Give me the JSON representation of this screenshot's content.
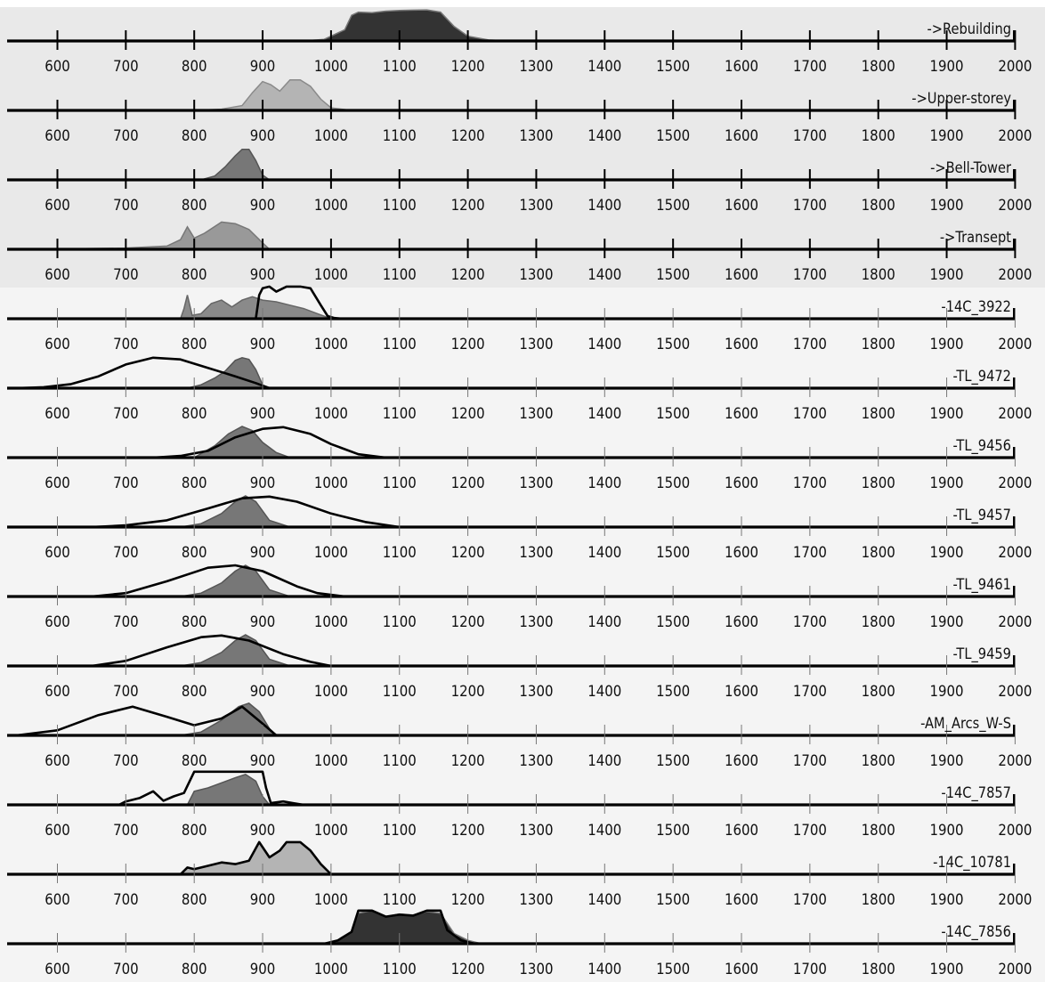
{
  "chart_data": {
    "type": "area",
    "x_ticks": [
      600,
      700,
      800,
      900,
      1000,
      1100,
      1200,
      1300,
      1400,
      1500,
      1600,
      1700,
      1800,
      1900,
      2000
    ],
    "xlim": [
      525,
      2000
    ],
    "rows": [
      {
        "label": "->Rebuilding",
        "band": "derived",
        "fill": "#333333",
        "edge": "#777777",
        "posterior": [
          [
            960,
            0
          ],
          [
            990,
            0.05
          ],
          [
            1020,
            0.35
          ],
          [
            1030,
            0.8
          ],
          [
            1040,
            0.9
          ],
          [
            1060,
            0.88
          ],
          [
            1080,
            0.93
          ],
          [
            1100,
            0.95
          ],
          [
            1120,
            0.96
          ],
          [
            1140,
            0.97
          ],
          [
            1160,
            0.9
          ],
          [
            1180,
            0.45
          ],
          [
            1200,
            0.15
          ],
          [
            1230,
            0.03
          ],
          [
            1260,
            0
          ]
        ],
        "likelihood": []
      },
      {
        "label": "->Upper-storey",
        "band": "derived",
        "fill": "#b4b4b4",
        "edge": "#8a8a8a",
        "posterior": [
          [
            800,
            0
          ],
          [
            840,
            0.04
          ],
          [
            870,
            0.15
          ],
          [
            885,
            0.55
          ],
          [
            900,
            0.9
          ],
          [
            912,
            0.8
          ],
          [
            925,
            0.6
          ],
          [
            940,
            0.95
          ],
          [
            955,
            0.95
          ],
          [
            970,
            0.75
          ],
          [
            985,
            0.35
          ],
          [
            1000,
            0.08
          ],
          [
            1030,
            0
          ]
        ],
        "likelihood": []
      },
      {
        "label": "->Bell-Tower",
        "band": "derived",
        "fill": "#777777",
        "edge": "#555555",
        "posterior": [
          [
            810,
            0
          ],
          [
            830,
            0.12
          ],
          [
            845,
            0.4
          ],
          [
            860,
            0.75
          ],
          [
            870,
            0.95
          ],
          [
            880,
            0.95
          ],
          [
            890,
            0.6
          ],
          [
            900,
            0.15
          ],
          [
            910,
            0
          ]
        ],
        "likelihood": []
      },
      {
        "label": "->Transept",
        "band": "derived",
        "fill": "#999999",
        "edge": "#777777",
        "posterior": [
          [
            550,
            0
          ],
          [
            640,
            0.02
          ],
          [
            700,
            0.04
          ],
          [
            760,
            0.1
          ],
          [
            780,
            0.3
          ],
          [
            790,
            0.7
          ],
          [
            800,
            0.35
          ],
          [
            815,
            0.5
          ],
          [
            840,
            0.85
          ],
          [
            860,
            0.8
          ],
          [
            880,
            0.62
          ],
          [
            900,
            0.2
          ],
          [
            910,
            0
          ]
        ],
        "likelihood": []
      },
      {
        "label": "-14C_3922",
        "band": "date",
        "fill": "#8a8a8a",
        "edge": "#666666",
        "posterior": [
          [
            780,
            0
          ],
          [
            785,
            0.3
          ],
          [
            790,
            0.7
          ],
          [
            797,
            0.1
          ],
          [
            810,
            0.15
          ],
          [
            825,
            0.45
          ],
          [
            840,
            0.55
          ],
          [
            855,
            0.35
          ],
          [
            870,
            0.55
          ],
          [
            885,
            0.65
          ],
          [
            900,
            0.55
          ],
          [
            920,
            0.5
          ],
          [
            940,
            0.4
          ],
          [
            960,
            0.3
          ],
          [
            980,
            0.15
          ],
          [
            1000,
            0
          ]
        ],
        "likelihood": [
          [
            890,
            0
          ],
          [
            895,
            0.7
          ],
          [
            900,
            0.9
          ],
          [
            910,
            0.95
          ],
          [
            920,
            0.8
          ],
          [
            935,
            0.95
          ],
          [
            955,
            0.95
          ],
          [
            970,
            0.9
          ],
          [
            985,
            0.4
          ],
          [
            995,
            0.08
          ],
          [
            1005,
            0.02
          ],
          [
            1015,
            0
          ]
        ]
      },
      {
        "label": "-TL_9472",
        "band": "date",
        "fill": "#777777",
        "edge": "#555555",
        "posterior": [
          [
            790,
            0
          ],
          [
            810,
            0.1
          ],
          [
            830,
            0.3
          ],
          [
            845,
            0.5
          ],
          [
            860,
            0.82
          ],
          [
            870,
            0.9
          ],
          [
            880,
            0.85
          ],
          [
            890,
            0.55
          ],
          [
            900,
            0.1
          ],
          [
            905,
            0
          ]
        ],
        "likelihood": [
          [
            540,
            0
          ],
          [
            580,
            0.03
          ],
          [
            620,
            0.12
          ],
          [
            660,
            0.35
          ],
          [
            700,
            0.7
          ],
          [
            740,
            0.9
          ],
          [
            780,
            0.85
          ],
          [
            820,
            0.6
          ],
          [
            860,
            0.35
          ],
          [
            890,
            0.15
          ],
          [
            910,
            0
          ]
        ]
      },
      {
        "label": "-TL_9456",
        "band": "date",
        "fill": "#777777",
        "edge": "#555555",
        "posterior": [
          [
            800,
            0
          ],
          [
            830,
            0.35
          ],
          [
            850,
            0.7
          ],
          [
            870,
            0.92
          ],
          [
            885,
            0.8
          ],
          [
            900,
            0.45
          ],
          [
            920,
            0.15
          ],
          [
            940,
            0
          ]
        ],
        "likelihood": [
          [
            740,
            0
          ],
          [
            780,
            0.05
          ],
          [
            820,
            0.2
          ],
          [
            860,
            0.6
          ],
          [
            900,
            0.85
          ],
          [
            930,
            0.9
          ],
          [
            970,
            0.7
          ],
          [
            1000,
            0.4
          ],
          [
            1040,
            0.1
          ],
          [
            1080,
            0
          ]
        ]
      },
      {
        "label": "-TL_9457",
        "band": "date",
        "fill": "#777777",
        "edge": "#555555",
        "posterior": [
          [
            780,
            0
          ],
          [
            810,
            0.1
          ],
          [
            840,
            0.4
          ],
          [
            860,
            0.75
          ],
          [
            875,
            0.92
          ],
          [
            890,
            0.75
          ],
          [
            910,
            0.2
          ],
          [
            940,
            0
          ]
        ],
        "likelihood": [
          [
            650,
            0
          ],
          [
            700,
            0.05
          ],
          [
            760,
            0.2
          ],
          [
            820,
            0.55
          ],
          [
            870,
            0.85
          ],
          [
            910,
            0.9
          ],
          [
            950,
            0.75
          ],
          [
            1000,
            0.4
          ],
          [
            1050,
            0.15
          ],
          [
            1100,
            0
          ]
        ]
      },
      {
        "label": "-TL_9461",
        "band": "date",
        "fill": "#777777",
        "edge": "#555555",
        "posterior": [
          [
            780,
            0
          ],
          [
            810,
            0.1
          ],
          [
            840,
            0.4
          ],
          [
            860,
            0.75
          ],
          [
            875,
            0.92
          ],
          [
            890,
            0.75
          ],
          [
            910,
            0.2
          ],
          [
            940,
            0
          ]
        ],
        "likelihood": [
          [
            650,
            0
          ],
          [
            700,
            0.1
          ],
          [
            760,
            0.45
          ],
          [
            820,
            0.85
          ],
          [
            860,
            0.92
          ],
          [
            900,
            0.75
          ],
          [
            950,
            0.3
          ],
          [
            980,
            0.1
          ],
          [
            1020,
            0
          ]
        ]
      },
      {
        "label": "-TL_9459",
        "band": "date",
        "fill": "#777777",
        "edge": "#555555",
        "posterior": [
          [
            780,
            0
          ],
          [
            810,
            0.1
          ],
          [
            840,
            0.4
          ],
          [
            860,
            0.75
          ],
          [
            875,
            0.92
          ],
          [
            890,
            0.75
          ],
          [
            910,
            0.2
          ],
          [
            940,
            0
          ]
        ],
        "likelihood": [
          [
            650,
            0
          ],
          [
            700,
            0.15
          ],
          [
            760,
            0.55
          ],
          [
            810,
            0.85
          ],
          [
            840,
            0.9
          ],
          [
            880,
            0.75
          ],
          [
            930,
            0.35
          ],
          [
            970,
            0.12
          ],
          [
            1000,
            0
          ]
        ]
      },
      {
        "label": "-AM_Arcs_W-S",
        "band": "date",
        "fill": "#777777",
        "edge": "#555555",
        "posterior": [
          [
            780,
            0
          ],
          [
            810,
            0.1
          ],
          [
            840,
            0.45
          ],
          [
            865,
            0.85
          ],
          [
            880,
            0.95
          ],
          [
            895,
            0.7
          ],
          [
            910,
            0.2
          ],
          [
            920,
            0
          ]
        ],
        "likelihood": [
          [
            540,
            0
          ],
          [
            600,
            0.15
          ],
          [
            660,
            0.6
          ],
          [
            710,
            0.85
          ],
          [
            760,
            0.55
          ],
          [
            800,
            0.3
          ],
          [
            840,
            0.5
          ],
          [
            870,
            0.85
          ],
          [
            900,
            0.35
          ],
          [
            920,
            0
          ]
        ]
      },
      {
        "label": "-14C_7857",
        "band": "date",
        "fill": "#777777",
        "edge": "#555555",
        "posterior": [
          [
            790,
            0
          ],
          [
            800,
            0.4
          ],
          [
            820,
            0.5
          ],
          [
            840,
            0.65
          ],
          [
            860,
            0.8
          ],
          [
            875,
            0.9
          ],
          [
            890,
            0.7
          ],
          [
            900,
            0.25
          ],
          [
            910,
            0
          ]
        ],
        "likelihood": [
          [
            690,
            0
          ],
          [
            700,
            0.1
          ],
          [
            720,
            0.2
          ],
          [
            740,
            0.4
          ],
          [
            755,
            0.12
          ],
          [
            770,
            0.25
          ],
          [
            785,
            0.35
          ],
          [
            800,
            0.98
          ],
          [
            900,
            0.98
          ],
          [
            905,
            0.5
          ],
          [
            912,
            0.05
          ],
          [
            930,
            0.1
          ],
          [
            945,
            0.05
          ],
          [
            960,
            0
          ]
        ]
      },
      {
        "label": "-14C_10781",
        "band": "date",
        "fill": "#b4b4b4",
        "edge": "#8a8a8a",
        "posterior": [
          [
            780,
            0
          ],
          [
            790,
            0.2
          ],
          [
            800,
            0.15
          ],
          [
            820,
            0.25
          ],
          [
            840,
            0.35
          ],
          [
            860,
            0.3
          ],
          [
            880,
            0.4
          ],
          [
            895,
            0.95
          ],
          [
            910,
            0.5
          ],
          [
            925,
            0.7
          ],
          [
            935,
            0.95
          ],
          [
            955,
            0.95
          ],
          [
            970,
            0.7
          ],
          [
            985,
            0.3
          ],
          [
            1000,
            0
          ]
        ],
        "likelihood": [
          [
            780,
            0
          ],
          [
            790,
            0.2
          ],
          [
            800,
            0.15
          ],
          [
            820,
            0.25
          ],
          [
            840,
            0.35
          ],
          [
            860,
            0.3
          ],
          [
            880,
            0.4
          ],
          [
            895,
            0.95
          ],
          [
            910,
            0.5
          ],
          [
            925,
            0.7
          ],
          [
            935,
            0.95
          ],
          [
            955,
            0.95
          ],
          [
            970,
            0.7
          ],
          [
            985,
            0.3
          ],
          [
            1000,
            0
          ]
        ]
      },
      {
        "label": "-14C_7856",
        "band": "date",
        "fill": "#333333",
        "edge": "#777777",
        "posterior": [
          [
            990,
            0
          ],
          [
            1010,
            0.1
          ],
          [
            1030,
            0.35
          ],
          [
            1040,
            0.9
          ],
          [
            1060,
            0.98
          ],
          [
            1080,
            0.8
          ],
          [
            1100,
            0.88
          ],
          [
            1120,
            0.85
          ],
          [
            1140,
            0.95
          ],
          [
            1160,
            0.9
          ],
          [
            1180,
            0.3
          ],
          [
            1200,
            0.1
          ],
          [
            1220,
            0
          ]
        ],
        "likelihood": [
          [
            990,
            0
          ],
          [
            1010,
            0.1
          ],
          [
            1030,
            0.35
          ],
          [
            1040,
            0.98
          ],
          [
            1060,
            0.98
          ],
          [
            1080,
            0.8
          ],
          [
            1100,
            0.86
          ],
          [
            1120,
            0.83
          ],
          [
            1140,
            0.98
          ],
          [
            1160,
            0.98
          ],
          [
            1170,
            0.4
          ],
          [
            1190,
            0.1
          ],
          [
            1210,
            0
          ]
        ]
      }
    ]
  }
}
